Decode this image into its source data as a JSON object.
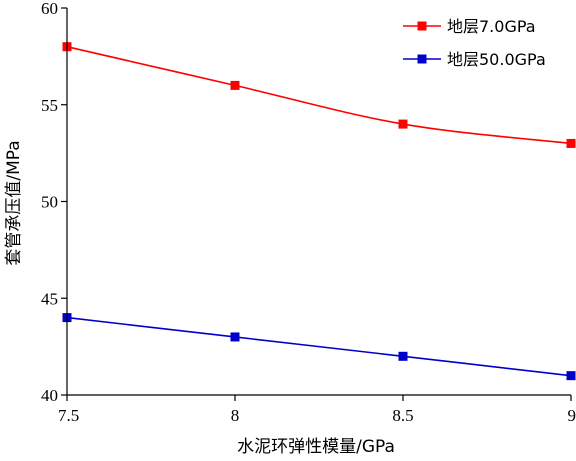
{
  "chart_data": {
    "type": "line",
    "title": "",
    "xlabel": "水泥环弹性模量/GPa",
    "ylabel": "套管承压值/MPa",
    "x": [
      7.5,
      8,
      8.5,
      9
    ],
    "x_tick_labels": [
      "7.5",
      "8",
      "8.5",
      "9"
    ],
    "xlim": [
      7.5,
      9
    ],
    "ylim": [
      40,
      60
    ],
    "y_ticks": [
      40,
      45,
      50,
      55,
      60
    ],
    "grid": false,
    "legend_position": "top-right",
    "series": [
      {
        "name": "地层7.0GPa",
        "color": "#ff0000",
        "marker": "square",
        "values": [
          58,
          56,
          54,
          53
        ]
      },
      {
        "name": "地层50.0GPa",
        "color": "#0000cc",
        "marker": "square",
        "values": [
          44,
          43,
          42,
          41
        ]
      }
    ]
  }
}
